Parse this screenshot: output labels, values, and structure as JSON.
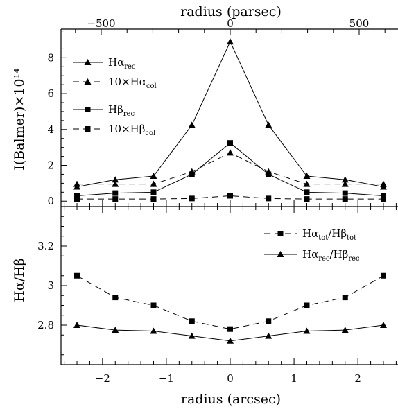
{
  "figure": {
    "top_axis_title": "radius (parsec)",
    "bottom_axis_title": "radius (arcsec)"
  },
  "chart_data": [
    {
      "type": "line",
      "panel": "top",
      "ylabel": "I(Balmer)×10¹⁴",
      "xlim": [
        -2.65,
        2.65
      ],
      "ylim": [
        -0.3,
        9.6
      ],
      "x_ticks": [
        -2,
        -1,
        0,
        1,
        2
      ],
      "y_ticks": [
        0,
        2,
        4,
        6,
        8
      ],
      "y_tick_labels": [
        "0",
        "2",
        "4",
        "6",
        "8"
      ],
      "top_axis": {
        "label": "radius (parsec)",
        "tick_labels": [
          "−500",
          "0",
          "500"
        ],
        "tick_positions_arcsec": [
          -2.02,
          0,
          2.02
        ]
      },
      "legend_position": "top-left",
      "x": [
        -2.4,
        -1.8,
        -1.2,
        -0.6,
        0,
        0.6,
        1.2,
        1.8,
        2.4
      ],
      "series": [
        {
          "name": "Hα_rec",
          "marker": "triangle",
          "line": "solid",
          "values": [
            0.8,
            1.2,
            1.4,
            4.25,
            8.9,
            4.25,
            1.4,
            1.2,
            0.8
          ]
        },
        {
          "name": "10×Hα_col",
          "marker": "triangle",
          "line": "dashed",
          "values": [
            0.95,
            0.95,
            0.95,
            1.65,
            2.7,
            1.65,
            0.95,
            0.95,
            0.95
          ]
        },
        {
          "name": "Hβ_rec",
          "marker": "square",
          "line": "solid",
          "values": [
            0.3,
            0.45,
            0.5,
            1.5,
            3.25,
            1.5,
            0.5,
            0.45,
            0.3
          ]
        },
        {
          "name": "10×Hβ_col",
          "marker": "square",
          "line": "dashed",
          "values": [
            0.12,
            0.12,
            0.12,
            0.15,
            0.3,
            0.15,
            0.12,
            0.12,
            0.12
          ]
        }
      ]
    },
    {
      "type": "line",
      "panel": "bottom",
      "ylabel": "Hα/Hβ",
      "xlabel": "radius (arcsec)",
      "xlim": [
        -2.65,
        2.65
      ],
      "ylim": [
        2.6,
        3.4
      ],
      "x_ticks": [
        -2,
        -1,
        0,
        1,
        2
      ],
      "x_tick_labels": [
        "−2",
        "−1",
        "0",
        "1",
        "2"
      ],
      "y_ticks": [
        2.8,
        3.0,
        3.2
      ],
      "y_tick_labels": [
        "2.8",
        "3",
        "3.2"
      ],
      "legend_position": "top-right",
      "x": [
        -2.4,
        -1.8,
        -1.2,
        -0.6,
        0,
        0.6,
        1.2,
        1.8,
        2.4
      ],
      "series": [
        {
          "name": "Hα_tot/Hβ_tot",
          "marker": "square",
          "line": "dashed",
          "values": [
            3.05,
            2.94,
            2.9,
            2.82,
            2.78,
            2.82,
            2.9,
            2.94,
            3.05
          ]
        },
        {
          "name": "Hα_rec/Hβ_rec",
          "marker": "triangle",
          "line": "solid",
          "values": [
            2.8,
            2.775,
            2.77,
            2.745,
            2.72,
            2.745,
            2.77,
            2.775,
            2.8
          ]
        }
      ]
    }
  ]
}
